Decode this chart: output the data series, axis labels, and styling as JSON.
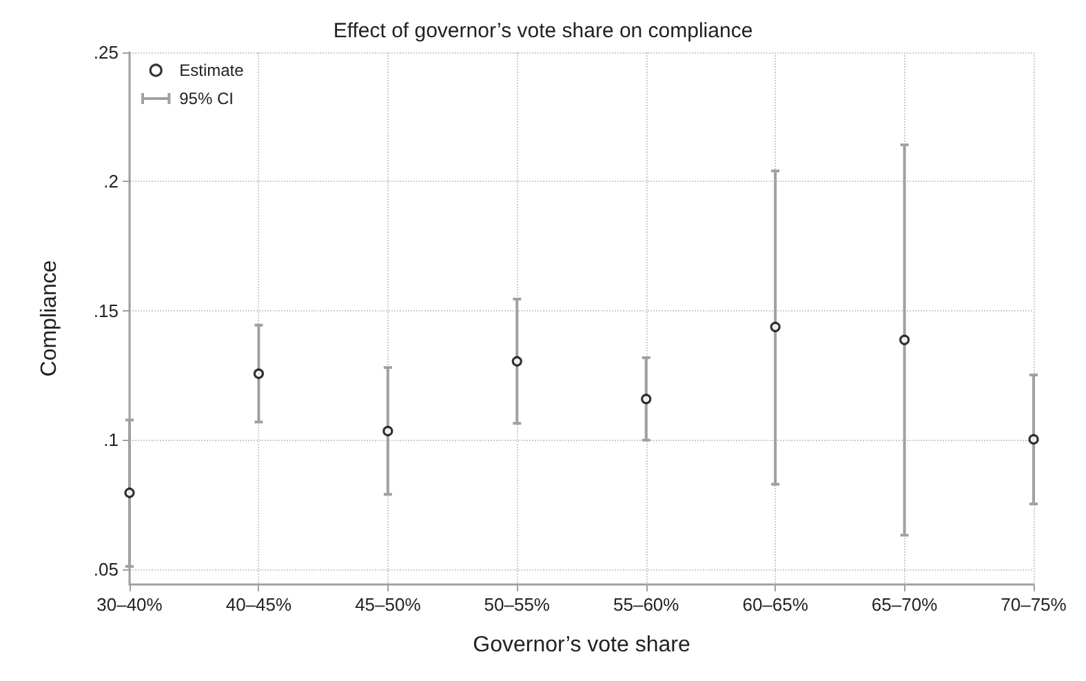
{
  "chart_data": {
    "type": "scatter",
    "title": "Effect of governor’s vote share on compliance",
    "xlabel": "Governor’s vote share",
    "ylabel": "Compliance",
    "categories": [
      "30–40%",
      "40–45%",
      "45–50%",
      "50–55%",
      "55–60%",
      "60–65%",
      "65–70%",
      "70–75%"
    ],
    "series": [
      {
        "name": "Estimate",
        "color": "#000000",
        "values": [
          0.0795,
          0.1256,
          0.1034,
          0.1304,
          0.1158,
          0.1437,
          0.1387,
          0.1002
        ],
        "errors": [
          [
            0.051,
            0.1077
          ],
          [
            0.1069,
            0.1444
          ],
          [
            0.0789,
            0.128
          ],
          [
            0.1064,
            0.1545
          ],
          [
            0.0999,
            0.1318
          ],
          [
            0.0828,
            0.2041
          ],
          [
            0.0631,
            0.2142
          ],
          [
            0.0752,
            0.1251
          ]
        ]
      }
    ],
    "annotations": [
      "95% CI"
    ],
    "ylim": [
      0.044,
      0.25
    ],
    "yticks": [
      {
        "value": 0.05,
        "label": ".05"
      },
      {
        "value": 0.1,
        "label": ".1"
      },
      {
        "value": 0.15,
        "label": ".15"
      },
      {
        "value": 0.2,
        "label": ".2"
      },
      {
        "value": 0.25,
        "label": ".25"
      }
    ],
    "grid": true,
    "legend": "top left",
    "marker": "circle"
  }
}
